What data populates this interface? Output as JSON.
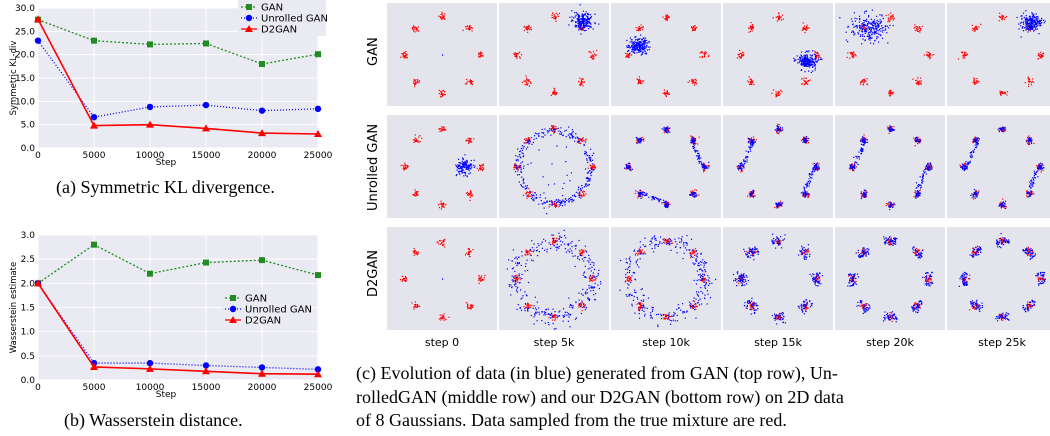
{
  "chart_data": [
    {
      "type": "line",
      "ylabel": "Symmetric KL-div",
      "xlabel": "Step",
      "x": [
        0,
        5000,
        10000,
        15000,
        20000,
        25000
      ],
      "xticks": [
        "0",
        "5000",
        "10000",
        "15000",
        "20000",
        "25000"
      ],
      "yticks": [
        "0.0",
        "5.0",
        "10.0",
        "15.0",
        "20.0",
        "25.0",
        "30.0"
      ],
      "ylim": [
        0,
        30
      ],
      "grid": true,
      "legend": "top-right",
      "series": [
        {
          "name": "GAN",
          "values": [
            27.5,
            23.0,
            22.2,
            22.4,
            18.0,
            20.1
          ],
          "color": "#228b22",
          "marker": "square",
          "dash": "2,2"
        },
        {
          "name": "Unrolled GAN",
          "values": [
            23.0,
            6.6,
            8.8,
            9.2,
            8.0,
            8.4
          ],
          "color": "#0000ff",
          "marker": "circle",
          "dash": "1,2"
        },
        {
          "name": "D2GAN",
          "values": [
            27.6,
            4.8,
            5.0,
            4.2,
            3.2,
            3.0
          ],
          "color": "#ff0000",
          "marker": "triangle",
          "dash": ""
        }
      ]
    },
    {
      "type": "line",
      "ylabel": "Wasserstein estimate",
      "xlabel": "Step",
      "x": [
        0,
        5000,
        10000,
        15000,
        20000,
        25000
      ],
      "xticks": [
        "0",
        "5000",
        "10000",
        "15000",
        "20000",
        "25000"
      ],
      "yticks": [
        "0.0",
        "0.5",
        "1.0",
        "1.5",
        "2.0",
        "2.5",
        "3.0"
      ],
      "ylim": [
        0,
        3
      ],
      "grid": true,
      "legend": "center-right",
      "series": [
        {
          "name": "GAN",
          "values": [
            2.0,
            2.8,
            2.2,
            2.43,
            2.48,
            2.17
          ],
          "color": "#228b22",
          "marker": "square",
          "dash": "2,2"
        },
        {
          "name": "Unrolled GAN",
          "values": [
            2.0,
            0.35,
            0.35,
            0.3,
            0.26,
            0.22
          ],
          "color": "#0000ff",
          "marker": "circle",
          "dash": "1,2"
        },
        {
          "name": "D2GAN",
          "values": [
            2.0,
            0.27,
            0.23,
            0.18,
            0.13,
            0.12
          ],
          "color": "#ff0000",
          "marker": "triangle",
          "dash": ""
        }
      ]
    }
  ],
  "captions": {
    "a": "(a) Symmetric KL divergence.",
    "b": "(b) Wasserstein distance.",
    "c_line1": "(c) Evolution of data (in blue) generated from GAN (top row), Un-",
    "c_line2": "rolledGAN (middle row) and our D2GAN (bottom row) on 2D data",
    "c_line3": "of 8 Gaussians. Data sampled from the true mixture are red."
  },
  "grid_panels": {
    "rows": [
      "GAN",
      "Unrolled GAN",
      "D2GAN"
    ],
    "steps": [
      "step 0",
      "step 5k",
      "step 10k",
      "step 15k",
      "step 20k",
      "step 25k"
    ],
    "true_color": "#ff0000",
    "generated_color": "#0000ff",
    "panel_background": "#e4e4ec"
  }
}
